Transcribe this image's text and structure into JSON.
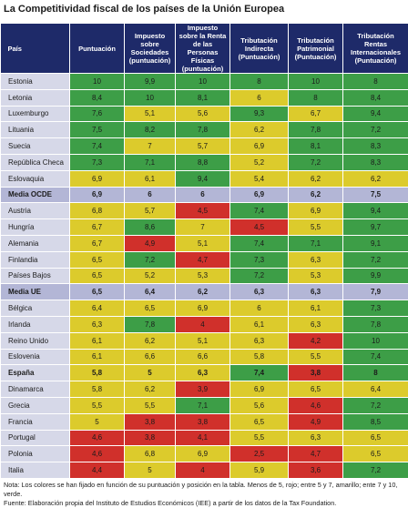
{
  "title": "La Competitividad fiscal de los países de la Unión Europea",
  "table": {
    "header": [
      "País",
      "Puntuación",
      "Impuesto sobre Sociedades (puntuación)",
      "Impuesto sobre la Renta de las Personas Físicas (puntuación)",
      "Tributación Indirecta (Puntuación)",
      "Tributación Patrimonial (Puntuación)",
      "Tributación Rentas Internacionales (Puntuación)"
    ],
    "rows": [
      {
        "cells": [
          "Estonia",
          "10",
          "9,9",
          "10",
          "8",
          "10",
          "8"
        ]
      },
      {
        "cells": [
          "Letonia",
          "8,4",
          "10",
          "8,1",
          "6",
          "8",
          "8,4"
        ]
      },
      {
        "cells": [
          "Luxemburgo",
          "7,6",
          "5,1",
          "5,6",
          "9,3",
          "6,7",
          "9,4"
        ]
      },
      {
        "cells": [
          "Lituania",
          "7,5",
          "8,2",
          "7,8",
          "6,2",
          "7,8",
          "7,2"
        ]
      },
      {
        "cells": [
          "Suecia",
          "7,4",
          "7",
          "5,7",
          "6,9",
          "8,1",
          "8,3"
        ]
      },
      {
        "cells": [
          "República Checa",
          "7,3",
          "7,1",
          "8,8",
          "5,2",
          "7,2",
          "8,3"
        ]
      },
      {
        "cells": [
          "Eslovaquia",
          "6,9",
          "6,1",
          "9,4",
          "5,4",
          "6,2",
          "6,2"
        ]
      },
      {
        "cells": [
          "Media OCDE",
          "6,9",
          "6",
          "6",
          "6,9",
          "6,2",
          "7,5"
        ],
        "emphasis": "average"
      },
      {
        "cells": [
          "Austria",
          "6,8",
          "5,7",
          "4,5",
          "7,4",
          "6,9",
          "9,4"
        ]
      },
      {
        "cells": [
          "Hungría",
          "6,7",
          "8,6",
          "7",
          "4,5",
          "5,5",
          "9,7"
        ]
      },
      {
        "cells": [
          "Alemania",
          "6,7",
          "4,9",
          "5,1",
          "7,4",
          "7,1",
          "9,1"
        ]
      },
      {
        "cells": [
          "Finlandia",
          "6,5",
          "7,2",
          "4,7",
          "7,3",
          "6,3",
          "7,2"
        ]
      },
      {
        "cells": [
          "Países Bajos",
          "6,5",
          "5,2",
          "5,3",
          "7,2",
          "5,3",
          "9,9"
        ]
      },
      {
        "cells": [
          "Media UE",
          "6,5",
          "6,4",
          "6,2",
          "6,3",
          "6,3",
          "7,9"
        ],
        "emphasis": "average"
      },
      {
        "cells": [
          "Bélgica",
          "6,4",
          "6,5",
          "6,9",
          "6",
          "6,1",
          "7,3"
        ]
      },
      {
        "cells": [
          "Irlanda",
          "6,3",
          "7,8",
          "4",
          "6,1",
          "6,3",
          "7,8"
        ]
      },
      {
        "cells": [
          "Reino Unido",
          "6,1",
          "6,2",
          "5,1",
          "6,3",
          "4,2",
          "10"
        ]
      },
      {
        "cells": [
          "Eslovenia",
          "6,1",
          "6,6",
          "6,6",
          "5,8",
          "5,5",
          "7,4"
        ]
      },
      {
        "cells": [
          "España",
          "5,8",
          "5",
          "6,3",
          "7,4",
          "3,8",
          "8"
        ],
        "emphasis": "bold"
      },
      {
        "cells": [
          "Dinamarca",
          "5,8",
          "6,2",
          "3,9",
          "6,9",
          "6,5",
          "6,4"
        ]
      },
      {
        "cells": [
          "Grecia",
          "5,5",
          "5,5",
          "7,1",
          "5,6",
          "4,6",
          "7,2"
        ]
      },
      {
        "cells": [
          "Francia",
          "5",
          "3,8",
          "3,8",
          "6,5",
          "4,9",
          "8,5"
        ]
      },
      {
        "cells": [
          "Portugal",
          "4,6",
          "3,8",
          "4,1",
          "5,5",
          "6,3",
          "6,5"
        ]
      },
      {
        "cells": [
          "Polonia",
          "4,6",
          "6,8",
          "6,9",
          "2,5",
          "4,7",
          "6,5"
        ]
      },
      {
        "cells": [
          "Italia",
          "4,4",
          "5",
          "4",
          "5,9",
          "3,6",
          "7,2"
        ]
      }
    ]
  },
  "notes": [
    "Nota: Los colores se han fijado en función de su puntuación y posición en la tabla. Menos de 5, rojo; entre 5 y 7, amarillo; ente 7 y 10, verde.",
    "Fuente: Elaboración propia del Instituto de Estudios Económicos (IEE) a partir de los datos de la Tax Foundation."
  ],
  "colors": {
    "high": "#3d9e47",
    "mid": "#dccb2c",
    "low": "#d0302b",
    "header": "#1e2a69",
    "name": "#d6d8e8",
    "average": "#b3b6d6"
  }
}
